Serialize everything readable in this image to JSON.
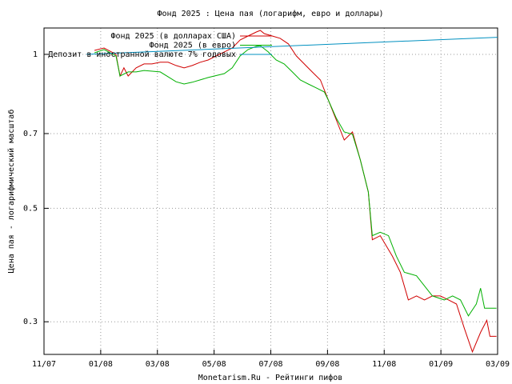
{
  "chart_data": {
    "type": "line",
    "title": "Фонд 2025 : Цена пая (логарифм, евро и доллары)",
    "y_label": "Цена пая - логарифмический масштаб",
    "x_label": "Monetarism.Ru - Рейтинги пифов",
    "y_scale": "log",
    "grid": true,
    "legend_position": "top-right",
    "xlim": [
      0,
      16
    ],
    "ylim": [
      0.259,
      1.126
    ],
    "xticks": [
      {
        "value": 0,
        "label": "11/07"
      },
      {
        "value": 2,
        "label": "01/08"
      },
      {
        "value": 4,
        "label": "03/08"
      },
      {
        "value": 6,
        "label": "05/08"
      },
      {
        "value": 8,
        "label": "07/08"
      },
      {
        "value": 10,
        "label": "09/08"
      },
      {
        "value": 12,
        "label": "11/08"
      },
      {
        "value": 14,
        "label": "01/09"
      },
      {
        "value": 16,
        "label": "03/09"
      }
    ],
    "yticks": [
      1,
      0.7,
      0.5,
      0.3
    ],
    "series": [
      {
        "name": "Фонд 2025 (в долларах США)",
        "color": "#d00000",
        "x": [
          1.78,
          2.12,
          2.54,
          2.68,
          2.82,
          2.97,
          3.25,
          3.53,
          3.81,
          4.1,
          4.38,
          4.66,
          4.94,
          5.23,
          5.51,
          5.79,
          6.07,
          6.36,
          6.64,
          6.92,
          7.2,
          7.49,
          7.63,
          7.77,
          8.05,
          8.33,
          8.62,
          8.9,
          9.18,
          9.46,
          9.75,
          10.03,
          10.31,
          10.59,
          10.88,
          11.16,
          11.44,
          11.58,
          11.86,
          12.29,
          12.57,
          12.85,
          13.14,
          13.42,
          13.7,
          13.98,
          14.27,
          14.55,
          14.83,
          15.11,
          15.4,
          15.62,
          15.73,
          15.96
        ],
        "values": [
          1.018,
          1.029,
          1.0,
          0.907,
          0.941,
          0.907,
          0.941,
          0.958,
          0.958,
          0.965,
          0.965,
          0.951,
          0.941,
          0.951,
          0.965,
          0.975,
          0.993,
          1.011,
          1.029,
          1.067,
          1.086,
          1.106,
          1.114,
          1.098,
          1.086,
          1.075,
          1.048,
          0.993,
          0.958,
          0.924,
          0.891,
          0.814,
          0.744,
          0.68,
          0.705,
          0.621,
          0.538,
          0.434,
          0.442,
          0.403,
          0.375,
          0.331,
          0.337,
          0.331,
          0.337,
          0.337,
          0.331,
          0.325,
          0.291,
          0.262,
          0.286,
          0.302,
          0.281,
          0.281
        ]
      },
      {
        "name": "Фонд 2025 (в евро)",
        "color": "#00b000",
        "x": [
          1.78,
          2.12,
          2.54,
          2.68,
          2.97,
          3.25,
          3.53,
          4.1,
          4.66,
          4.94,
          5.23,
          5.79,
          6.36,
          6.64,
          6.92,
          7.2,
          7.49,
          7.63,
          7.91,
          8.19,
          8.47,
          8.76,
          9.04,
          9.32,
          9.6,
          9.89,
          10.03,
          10.31,
          10.59,
          10.88,
          11.16,
          11.44,
          11.58,
          11.86,
          12.15,
          12.43,
          12.71,
          13.14,
          13.7,
          14.12,
          14.41,
          14.69,
          14.97,
          15.25,
          15.4,
          15.54,
          15.96
        ],
        "values": [
          1.007,
          1.022,
          0.993,
          0.907,
          0.924,
          0.924,
          0.93,
          0.924,
          0.884,
          0.875,
          0.882,
          0.901,
          0.917,
          0.941,
          0.993,
          1.022,
          1.037,
          1.04,
          1.011,
          0.975,
          0.958,
          0.924,
          0.891,
          0.875,
          0.86,
          0.844,
          0.814,
          0.75,
          0.705,
          0.698,
          0.621,
          0.538,
          0.442,
          0.449,
          0.442,
          0.403,
          0.375,
          0.369,
          0.337,
          0.331,
          0.337,
          0.331,
          0.308,
          0.325,
          0.349,
          0.319,
          0.319
        ]
      },
      {
        "name": "Депозит в иностранной валюте 7% годовых",
        "color": "#0090c0",
        "x": [
          1.5,
          16
        ],
        "values": [
          1.0,
          1.08
        ]
      }
    ]
  }
}
